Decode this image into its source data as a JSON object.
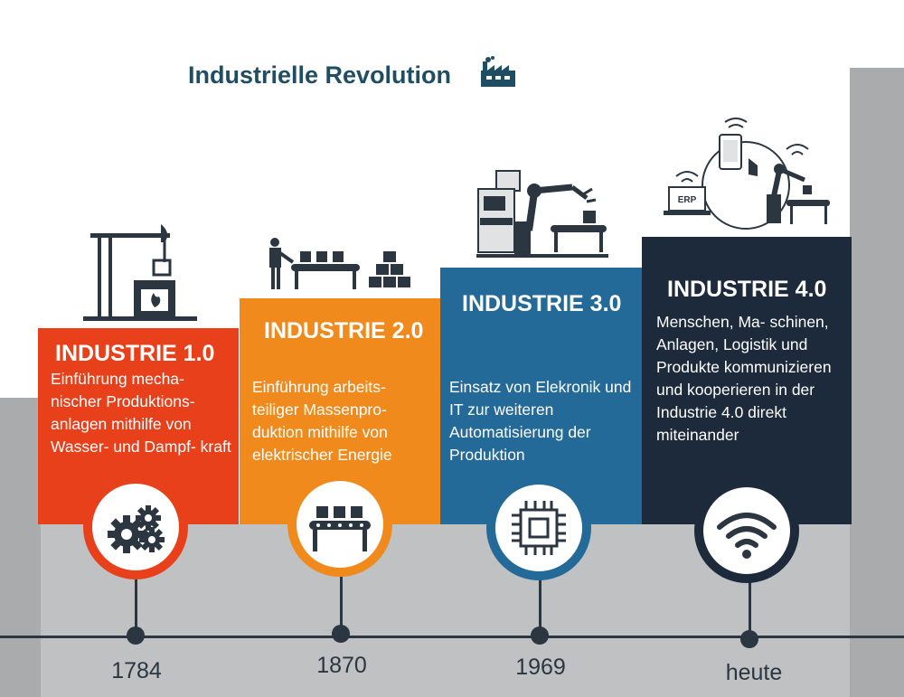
{
  "title": "Industrielle Revolution",
  "colors": {
    "industry1": "#e8401a",
    "industry2": "#f08a1c",
    "industry3": "#236a99",
    "industry4": "#1c2a3b",
    "timeline": "#2b3640",
    "title": "#1f4e63"
  },
  "stages": [
    {
      "heading": "INDUSTRIE 1.0",
      "description": "Einführung mecha- nischer Produktions- anlagen mithilfe von Wasser- und Dampf- kraft",
      "year": "1784",
      "icon": "gears-icon"
    },
    {
      "heading": "INDUSTRIE 2.0",
      "description": "Einführung arbeits- teiliger Massenpro- duktion mithilfe von elektrischer Energie",
      "year": "1870",
      "icon": "conveyor-icon"
    },
    {
      "heading": "INDUSTRIE  3.0",
      "description": "Einsatz von Elekronik und IT zur weiteren Automatisierung der Produktion",
      "year": "1969",
      "icon": "microchip-icon"
    },
    {
      "heading": "INDUSTRIE 4.0",
      "description": "Menschen, Ma- schinen, Anlagen, Logistik und Produkte kommunizieren und kooperieren in der Industrie 4.0 direkt miteinander",
      "year": "heute",
      "icon": "wifi-icon"
    }
  ],
  "illustrations": {
    "erp_label": "ERP"
  }
}
